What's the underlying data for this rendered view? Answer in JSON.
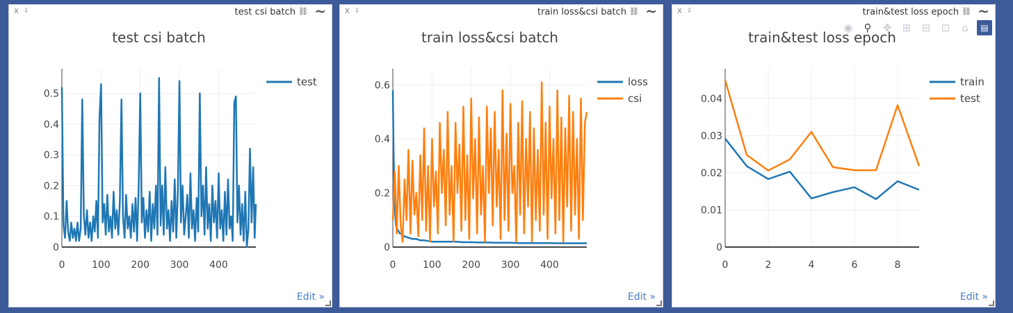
{
  "panes": [
    {
      "title": "test csi batch",
      "close_label": "X",
      "pin_label": "⇩",
      "edit_label": "Edit »",
      "chart_data": {
        "type": "line",
        "title": "test csi batch",
        "xlim": [
          0,
          495
        ],
        "ylim": [
          0,
          0.58
        ],
        "xticks": [
          0,
          100,
          200,
          300,
          400
        ],
        "yticks": [
          0,
          0.1,
          0.2,
          0.3,
          0.4,
          0.5
        ],
        "ytick_labels": [
          "0",
          "0.1",
          "0.2",
          "0.3",
          "0.4",
          "0.5"
        ],
        "legend": "top-right",
        "series": [
          {
            "name": "test",
            "color": "#1f77b4",
            "x": [
              0,
              4,
              8,
              12,
              16,
              20,
              24,
              28,
              32,
              36,
              40,
              44,
              48,
              52,
              56,
              60,
              64,
              68,
              72,
              76,
              80,
              84,
              88,
              92,
              96,
              100,
              104,
              108,
              112,
              116,
              120,
              124,
              128,
              132,
              136,
              140,
              144,
              148,
              152,
              156,
              160,
              164,
              168,
              172,
              176,
              180,
              184,
              188,
              192,
              196,
              200,
              204,
              208,
              212,
              216,
              220,
              224,
              228,
              232,
              236,
              240,
              244,
              248,
              252,
              256,
              260,
              264,
              268,
              272,
              276,
              280,
              284,
              288,
              292,
              296,
              300,
              304,
              308,
              312,
              316,
              320,
              324,
              328,
              332,
              336,
              340,
              344,
              348,
              352,
              356,
              360,
              364,
              368,
              372,
              376,
              380,
              384,
              388,
              392,
              396,
              400,
              404,
              408,
              412,
              416,
              420,
              424,
              428,
              432,
              436,
              440,
              444,
              448,
              452,
              456,
              460,
              464,
              468,
              472,
              476,
              480,
              484,
              488,
              492,
              495
            ],
            "values": [
              0.52,
              0.07,
              0.03,
              0.15,
              0.05,
              0.02,
              0.08,
              0.03,
              0.06,
              0.02,
              0.08,
              0.02,
              0.06,
              0.48,
              0.1,
              0.04,
              0.12,
              0.03,
              0.08,
              0.02,
              0.1,
              0.05,
              0.15,
              0.03,
              0.42,
              0.53,
              0.08,
              0.14,
              0.04,
              0.17,
              0.05,
              0.1,
              0.03,
              0.18,
              0.06,
              0.12,
              0.04,
              0.15,
              0.48,
              0.1,
              0.03,
              0.17,
              0.06,
              0.1,
              0.03,
              0.14,
              0.05,
              0.16,
              0.02,
              0.2,
              0.5,
              0.08,
              0.16,
              0.03,
              0.12,
              0.05,
              0.18,
              0.02,
              0.14,
              0.06,
              0.2,
              0.04,
              0.55,
              0.07,
              0.2,
              0.04,
              0.26,
              0.06,
              0.12,
              0.02,
              0.15,
              0.05,
              0.22,
              0.03,
              0.18,
              0.54,
              0.08,
              0.2,
              0.04,
              0.1,
              0.17,
              0.03,
              0.24,
              0.06,
              0.12,
              0.02,
              0.16,
              0.05,
              0.5,
              0.1,
              0.2,
              0.04,
              0.26,
              0.06,
              0.14,
              0.02,
              0.2,
              0.08,
              0.15,
              0.03,
              0.24,
              0.06,
              0.12,
              0.02,
              0.18,
              0.04,
              0.22,
              0.06,
              0.1,
              0.02,
              0.47,
              0.49,
              0.08,
              0.2,
              0.04,
              0.14,
              0.02,
              0.18,
              0.0,
              0.06,
              0.32,
              0.08,
              0.26,
              0.03,
              0.14
            ]
          }
        ]
      }
    },
    {
      "title": "train loss&csi batch",
      "close_label": "X",
      "pin_label": "⇩",
      "edit_label": "Edit »",
      "chart_data": {
        "type": "line",
        "title": "train loss&csi batch",
        "xlim": [
          0,
          495
        ],
        "ylim": [
          0,
          0.66
        ],
        "xticks": [
          0,
          100,
          200,
          300,
          400
        ],
        "yticks": [
          0,
          0.2,
          0.4,
          0.6
        ],
        "ytick_labels": [
          "0",
          "0.2",
          "0.4",
          "0.6"
        ],
        "legend": "top-right",
        "series": [
          {
            "name": "loss",
            "color": "#1f77b4",
            "x": [
              0,
              2,
              4,
              6,
              8,
              10,
              14,
              18,
              22,
              26,
              30,
              40,
              50,
              60,
              70,
              80,
              100,
              120,
              140,
              160,
              180,
              200,
              220,
              240,
              260,
              280,
              300,
              320,
              340,
              360,
              380,
              400,
              420,
              440,
              460,
              480,
              495
            ],
            "values": [
              0.58,
              0.35,
              0.2,
              0.12,
              0.08,
              0.07,
              0.06,
              0.05,
              0.05,
              0.04,
              0.04,
              0.035,
              0.03,
              0.03,
              0.025,
              0.025,
              0.02,
              0.02,
              0.02,
              0.02,
              0.018,
              0.018,
              0.017,
              0.017,
              0.016,
              0.016,
              0.016,
              0.015,
              0.015,
              0.015,
              0.015,
              0.015,
              0.014,
              0.014,
              0.014,
              0.014,
              0.014
            ]
          },
          {
            "name": "csi",
            "color": "#ff7f0e",
            "x": [
              0,
              5,
              10,
              15,
              20,
              25,
              30,
              35,
              40,
              45,
              50,
              55,
              60,
              65,
              70,
              75,
              80,
              85,
              90,
              95,
              100,
              105,
              110,
              115,
              120,
              125,
              130,
              135,
              140,
              145,
              150,
              155,
              160,
              165,
              170,
              175,
              180,
              185,
              190,
              195,
              200,
              205,
              210,
              215,
              220,
              225,
              230,
              235,
              240,
              245,
              250,
              255,
              260,
              265,
              270,
              275,
              280,
              285,
              290,
              295,
              300,
              305,
              310,
              315,
              320,
              325,
              330,
              335,
              340,
              345,
              350,
              355,
              360,
              365,
              370,
              375,
              380,
              385,
              390,
              395,
              400,
              405,
              410,
              415,
              420,
              425,
              430,
              435,
              440,
              445,
              450,
              455,
              460,
              465,
              470,
              475,
              480,
              485,
              490,
              495
            ],
            "values": [
              0.1,
              0.28,
              0.05,
              0.3,
              0.08,
              0.02,
              0.25,
              0.1,
              0.36,
              0.05,
              0.32,
              0.12,
              0.2,
              0.04,
              0.34,
              0.1,
              0.44,
              0.06,
              0.3,
              0.02,
              0.4,
              0.15,
              0.28,
              0.05,
              0.46,
              0.2,
              0.36,
              0.08,
              0.5,
              0.12,
              0.3,
              0.02,
              0.46,
              0.2,
              0.38,
              0.06,
              0.52,
              0.1,
              0.34,
              0.03,
              0.55,
              0.18,
              0.4,
              0.05,
              0.48,
              0.12,
              0.3,
              0.02,
              0.52,
              0.2,
              0.44,
              0.08,
              0.5,
              0.15,
              0.36,
              0.03,
              0.58,
              0.1,
              0.42,
              0.06,
              0.53,
              0.2,
              0.3,
              0.02,
              0.46,
              0.12,
              0.54,
              0.05,
              0.4,
              0.15,
              0.5,
              0.02,
              0.44,
              0.1,
              0.36,
              0.06,
              0.61,
              0.12,
              0.46,
              0.03,
              0.52,
              0.18,
              0.4,
              0.05,
              0.58,
              0.1,
              0.48,
              0.02,
              0.44,
              0.15,
              0.56,
              0.06,
              0.5,
              0.12,
              0.4,
              0.03,
              0.55,
              0.1,
              0.46,
              0.5
            ]
          }
        ]
      }
    },
    {
      "title": "train&test loss epoch",
      "close_label": "X",
      "pin_label": "⇩",
      "edit_label": "Edit »",
      "modebar": [
        "camera-icon",
        "zoom-icon",
        "pan-icon",
        "zoom-in-icon",
        "zoom-out-icon",
        "autoscale-icon",
        "reset-axes-icon",
        "plotly-logo-icon"
      ],
      "chart_data": {
        "type": "line",
        "title": "train&test loss epoch",
        "xlim": [
          0,
          9
        ],
        "ylim": [
          0,
          0.048
        ],
        "xticks": [
          0,
          2,
          4,
          6,
          8
        ],
        "yticks": [
          0,
          0.01,
          0.02,
          0.03,
          0.04
        ],
        "ytick_labels": [
          "0",
          "0.01",
          "0.02",
          "0.03",
          "0.04"
        ],
        "legend": "top-right",
        "series": [
          {
            "name": "train",
            "color": "#1f77b4",
            "x": [
              0,
              1,
              2,
              3,
              4,
              5,
              6,
              7,
              8,
              9
            ],
            "values": [
              0.0292,
              0.0218,
              0.0183,
              0.0203,
              0.0131,
              0.0148,
              0.0161,
              0.0129,
              0.0177,
              0.0154
            ]
          },
          {
            "name": "test",
            "color": "#ff7f0e",
            "x": [
              0,
              1,
              2,
              3,
              4,
              5,
              6,
              7,
              8,
              9
            ],
            "values": [
              0.0449,
              0.0248,
              0.0206,
              0.0236,
              0.031,
              0.0215,
              0.0207,
              0.0207,
              0.0382,
              0.0218
            ]
          }
        ]
      }
    }
  ]
}
